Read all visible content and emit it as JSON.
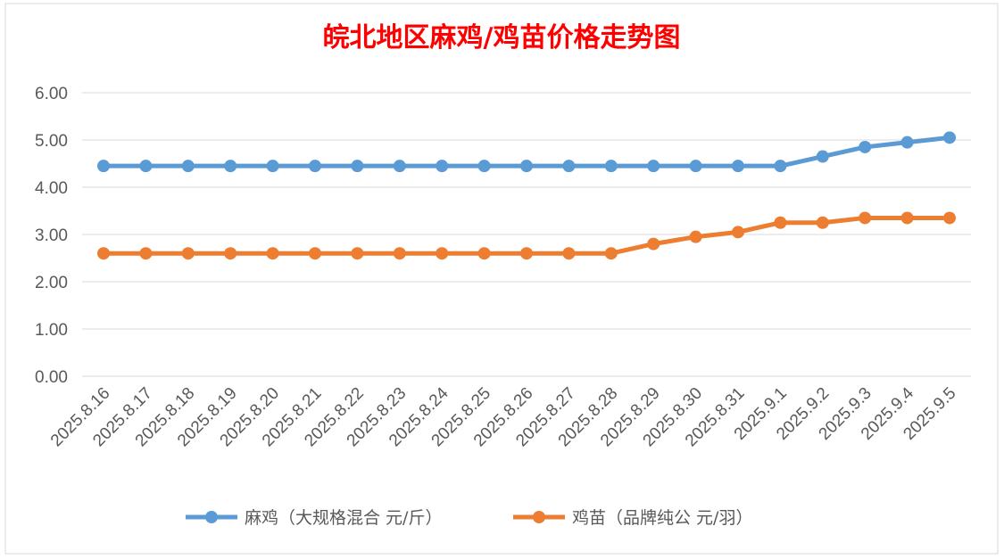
{
  "chart_data": {
    "type": "line",
    "title": "皖北地区麻鸡/鸡苗价格走势图",
    "xlabel": "",
    "ylabel": "",
    "categories": [
      "2025.8.16",
      "2025.8.17",
      "2025.8.18",
      "2025.8.19",
      "2025.8.20",
      "2025.8.21",
      "2025.8.22",
      "2025.8.23",
      "2025.8.24",
      "2025.8.25",
      "2025.8.26",
      "2025.8.27",
      "2025.8.28",
      "2025.8.29",
      "2025.8.30",
      "2025.8.31",
      "2025.9.1",
      "2025.9.2",
      "2025.9.3",
      "2025.9.4",
      "2025.9.5"
    ],
    "y_ticks": [
      "0.00",
      "1.00",
      "2.00",
      "3.00",
      "4.00",
      "5.00",
      "6.00"
    ],
    "ylim": [
      0,
      6
    ],
    "grid": true,
    "legend_position": "bottom",
    "series": [
      {
        "name": "麻鸡（大规格混合 元/斤）",
        "color": "#5b9bd5",
        "values": [
          4.45,
          4.45,
          4.45,
          4.45,
          4.45,
          4.45,
          4.45,
          4.45,
          4.45,
          4.45,
          4.45,
          4.45,
          4.45,
          4.45,
          4.45,
          4.45,
          4.45,
          4.65,
          4.85,
          4.95,
          5.05
        ]
      },
      {
        "name": "鸡苗（品牌纯公 元/羽）",
        "color": "#ed7d31",
        "values": [
          2.6,
          2.6,
          2.6,
          2.6,
          2.6,
          2.6,
          2.6,
          2.6,
          2.6,
          2.6,
          2.6,
          2.6,
          2.6,
          2.8,
          2.95,
          3.05,
          3.25,
          3.25,
          3.35,
          3.35,
          3.35
        ]
      }
    ],
    "title_color": "#ff0000"
  }
}
